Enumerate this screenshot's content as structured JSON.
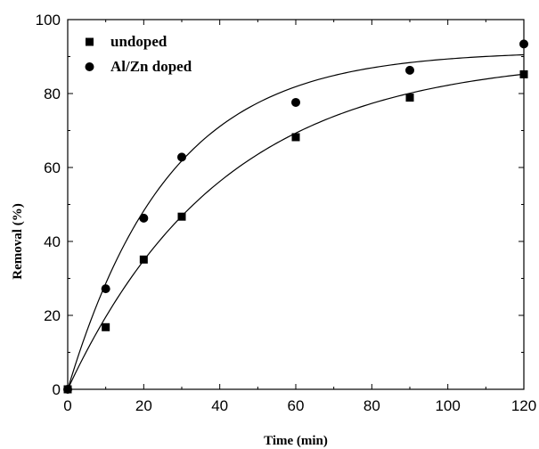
{
  "chart_data": {
    "type": "scatter",
    "xlabel": "Time (min)",
    "ylabel": "Removal (%)",
    "xlim": [
      0,
      120
    ],
    "ylim": [
      0,
      100
    ],
    "x_ticks": [
      0,
      20,
      40,
      60,
      80,
      100,
      120
    ],
    "y_ticks": [
      0,
      20,
      40,
      60,
      80,
      100
    ],
    "grid": false,
    "legend_position": "top-left",
    "series": [
      {
        "name": "undoped",
        "marker": "square",
        "color": "#000000",
        "x": [
          0,
          10,
          20,
          30,
          60,
          90,
          120
        ],
        "y": [
          0,
          16.8,
          35.1,
          46.7,
          68.2,
          78.9,
          85.2
        ],
        "fit": {
          "model": "exponential-rise",
          "ymax": 90.0,
          "k": 0.0245
        }
      },
      {
        "name": "Al/Zn doped",
        "marker": "circle",
        "color": "#000000",
        "x": [
          0,
          10,
          20,
          30,
          60,
          90,
          120
        ],
        "y": [
          0,
          27.2,
          46.3,
          62.8,
          77.6,
          86.3,
          93.4
        ],
        "fit": {
          "model": "exponential-rise",
          "ymax": 91.5,
          "k": 0.0375
        }
      }
    ]
  }
}
